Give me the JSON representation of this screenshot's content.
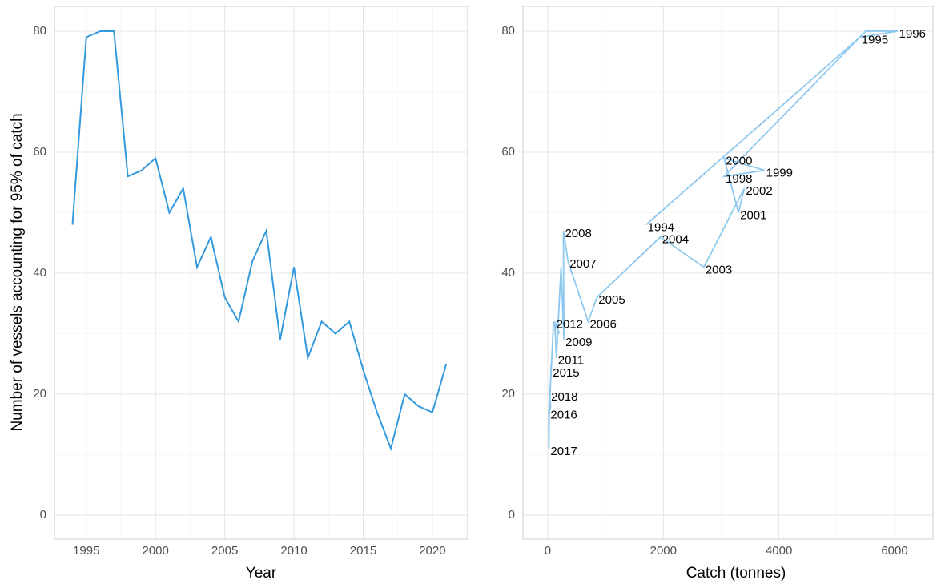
{
  "chart_data": [
    {
      "type": "line",
      "y_label": "Number of vessels accounting for 95% of catch",
      "x_label": "Year",
      "x": [
        1994,
        1995,
        1996,
        1997,
        1998,
        1999,
        2000,
        2001,
        2002,
        2003,
        2004,
        2005,
        2006,
        2007,
        2008,
        2009,
        2010,
        2011,
        2012,
        2013,
        2014,
        2015,
        2016,
        2017,
        2018,
        2019,
        2020,
        2021
      ],
      "series": [
        {
          "color": "#3399dd",
          "values": [
            48,
            79,
            80,
            80,
            56,
            57,
            59,
            50,
            54,
            41,
            46,
            36,
            32,
            42,
            47,
            29,
            41,
            26,
            32,
            30,
            32,
            24,
            17,
            11,
            20,
            18,
            17,
            25
          ]
        }
      ],
      "xlim": [
        1992.7,
        2022.55
      ],
      "xticks": [
        1995,
        2000,
        2005,
        2010,
        2015,
        2020
      ],
      "ylim": [
        -3.97,
        84.1
      ],
      "yticks": [
        0,
        20,
        40,
        60,
        80
      ],
      "grid": true,
      "minor_grid": true
    },
    {
      "type": "connected_scatter",
      "x_label": "Catch (tonnes)",
      "x": [
        1700,
        5400,
        6050,
        5500,
        3050,
        3750,
        3050,
        3300,
        3400,
        2700,
        1950,
        850,
        700,
        350,
        270,
        280,
        230,
        150,
        120,
        200,
        100,
        60,
        20,
        20,
        30,
        50,
        30,
        60
      ],
      "point_labels": [
        "1994",
        "1995",
        "1996",
        null,
        "1998",
        "1999",
        "2000",
        "2001",
        "2002",
        "2003",
        "2004",
        "2005",
        "2006",
        "2007",
        "2008",
        "2009",
        null,
        "2011",
        "2012",
        null,
        null,
        "2015",
        "2016",
        "2017",
        "2018",
        null,
        null,
        null
      ],
      "series": [
        {
          "color": "#8ec8ee",
          "values": [
            48,
            79,
            80,
            80,
            56,
            57,
            59,
            50,
            54,
            41,
            46,
            36,
            32,
            42,
            47,
            29,
            41,
            26,
            32,
            30,
            32,
            24,
            17,
            11,
            20,
            18,
            17,
            25
          ]
        }
      ],
      "xlim": [
        -429,
        6665
      ],
      "xticks": [
        0,
        2000,
        4000,
        6000
      ],
      "ylim": [
        -3.97,
        84.1
      ],
      "yticks": [
        0,
        20,
        40,
        60,
        80
      ],
      "grid": true,
      "minor_grid": true
    }
  ]
}
